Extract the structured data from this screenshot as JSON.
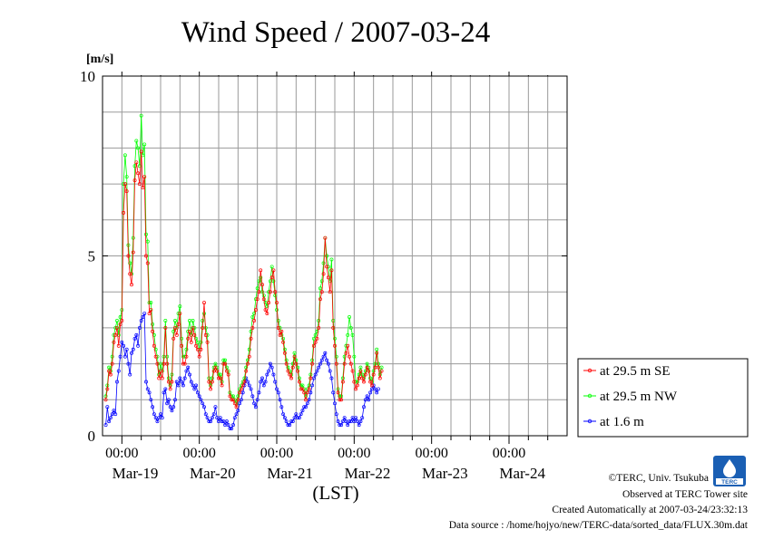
{
  "chart_data": {
    "type": "line",
    "title": "Wind Speed / 2007-03-24",
    "ylabel": "[m/s]",
    "xlabel": "(LST)",
    "ylim": [
      0,
      10
    ],
    "yticks": [
      "0",
      "5",
      "10"
    ],
    "xlim": [
      "2007-03-18T18:00",
      "2007-03-24T18:00"
    ],
    "x_tick_labels": [
      "00:00",
      "00:00",
      "00:00",
      "00:00",
      "00:00"
    ],
    "x_date_labels": [
      "Mar-19",
      "Mar-20",
      "Mar-21",
      "Mar-22",
      "Mar-23",
      "Mar-24"
    ],
    "grid": true,
    "legend_position": "right",
    "series": [
      {
        "name": "at 29.5 m SE",
        "color": "#ff0000",
        "values": [
          1.0,
          1.3,
          1.8,
          1.7,
          2.0,
          2.6,
          2.8,
          3.0,
          2.5,
          3.1,
          3.2,
          6.2,
          7.0,
          6.8,
          5.0,
          4.5,
          4.2,
          5.1,
          7.1,
          7.6,
          7.3,
          7.0,
          7.9,
          6.9,
          7.2,
          5.0,
          4.8,
          3.4,
          3.5,
          2.9,
          2.5,
          2.2,
          2.0,
          1.6,
          1.8,
          1.6,
          2.0,
          3.0,
          2.0,
          1.5,
          1.3,
          1.5,
          2.7,
          3.0,
          2.8,
          3.1,
          3.4,
          2.5,
          2.0,
          2.0,
          2.2,
          2.7,
          2.9,
          2.6,
          3.0,
          2.8,
          2.5,
          2.4,
          2.2,
          2.4,
          3.0,
          3.7,
          2.8,
          2.6,
          1.5,
          1.3,
          1.5,
          1.8,
          1.9,
          1.8,
          1.6,
          1.6,
          1.4,
          2.0,
          2.0,
          1.8,
          1.7,
          1.1,
          1.0,
          1.0,
          0.9,
          0.8,
          1.0,
          1.2,
          1.3,
          1.4,
          1.5,
          1.8,
          2.0,
          2.2,
          2.7,
          3.0,
          3.2,
          3.5,
          3.8,
          4.0,
          4.6,
          4.2,
          3.8,
          3.5,
          3.4,
          3.7,
          4.0,
          4.4,
          4.6,
          4.0,
          3.7,
          3.0,
          2.8,
          2.9,
          2.6,
          2.3,
          2.0,
          1.8,
          1.7,
          1.6,
          1.9,
          2.2,
          2.0,
          1.8,
          1.5,
          1.3,
          1.3,
          1.2,
          1.0,
          1.2,
          1.3,
          1.6,
          2.0,
          2.5,
          2.6,
          2.7,
          3.0,
          3.8,
          4.0,
          4.5,
          5.5,
          4.7,
          4.4,
          4.0,
          4.6,
          3.0,
          2.5,
          2.0,
          1.2,
          1.0,
          1.0,
          1.5,
          2.0,
          2.3,
          2.5,
          2.2,
          2.0,
          1.8,
          1.5,
          1.3,
          1.4,
          1.6,
          1.8,
          1.6,
          1.5,
          1.7,
          1.9,
          1.8,
          1.5,
          1.4,
          1.7,
          1.9,
          2.3,
          1.9,
          1.6,
          1.8
        ]
      },
      {
        "name": "at 29.5 m NW",
        "color": "#00ff00",
        "values": [
          1.1,
          1.4,
          1.9,
          1.8,
          2.2,
          2.8,
          3.0,
          3.2,
          2.8,
          3.3,
          3.5,
          7.0,
          7.8,
          7.2,
          5.3,
          4.8,
          4.5,
          5.5,
          7.5,
          8.2,
          8.0,
          7.5,
          8.9,
          7.8,
          8.1,
          5.6,
          5.4,
          3.7,
          3.7,
          3.1,
          2.8,
          2.4,
          2.2,
          1.7,
          2.0,
          1.8,
          2.2,
          3.2,
          2.2,
          1.6,
          1.4,
          1.7,
          2.9,
          3.2,
          3.0,
          3.4,
          3.6,
          2.7,
          2.2,
          2.2,
          2.4,
          2.9,
          3.2,
          2.8,
          3.2,
          3.0,
          2.7,
          2.6,
          2.4,
          2.6,
          3.2,
          3.4,
          3.0,
          2.8,
          1.6,
          1.4,
          1.6,
          1.9,
          2.0,
          1.9,
          1.7,
          1.7,
          1.5,
          2.1,
          2.1,
          1.9,
          1.8,
          1.2,
          1.1,
          1.1,
          1.0,
          0.9,
          1.1,
          1.3,
          1.4,
          1.5,
          1.6,
          1.9,
          2.1,
          2.4,
          2.9,
          3.3,
          3.4,
          3.8,
          4.1,
          4.3,
          4.4,
          4.0,
          3.9,
          3.7,
          3.6,
          4.0,
          4.3,
          4.7,
          4.3,
          3.9,
          3.5,
          3.2,
          3.0,
          2.8,
          2.7,
          2.4,
          2.1,
          1.9,
          1.8,
          1.7,
          2.0,
          2.3,
          2.1,
          1.9,
          1.6,
          1.4,
          1.4,
          1.3,
          1.1,
          1.3,
          1.4,
          1.7,
          2.1,
          2.7,
          2.8,
          2.9,
          3.2,
          4.1,
          4.3,
          4.8,
          5.5,
          5.0,
          4.7,
          4.3,
          4.9,
          3.2,
          2.7,
          2.2,
          1.3,
          1.1,
          1.1,
          1.6,
          2.2,
          2.5,
          2.8,
          3.3,
          3.0,
          2.8,
          2.2,
          1.5,
          1.5,
          1.7,
          1.9,
          1.7,
          1.6,
          1.8,
          2.0,
          1.9,
          1.6,
          1.5,
          1.8,
          2.0,
          2.4,
          2.0,
          1.7,
          1.9
        ]
      },
      {
        "name": "at 1.6 m",
        "color": "#0000ff",
        "values": [
          0.3,
          0.8,
          0.4,
          0.5,
          0.6,
          0.7,
          0.6,
          1.5,
          1.8,
          2.2,
          2.6,
          2.5,
          2.2,
          2.4,
          2.0,
          1.7,
          2.3,
          2.4,
          2.7,
          2.8,
          2.5,
          3.0,
          3.2,
          3.3,
          3.4,
          1.5,
          1.3,
          1.2,
          1.0,
          0.8,
          0.6,
          0.5,
          0.4,
          0.5,
          0.6,
          0.5,
          1.2,
          1.3,
          0.9,
          1.0,
          0.8,
          0.7,
          0.8,
          1.0,
          1.5,
          1.4,
          1.6,
          1.5,
          1.4,
          1.6,
          1.8,
          1.9,
          1.7,
          1.5,
          1.4,
          1.3,
          1.4,
          1.2,
          1.1,
          1.0,
          0.9,
          0.8,
          0.6,
          0.5,
          0.4,
          0.4,
          0.5,
          0.6,
          0.8,
          0.5,
          0.4,
          0.5,
          0.4,
          0.4,
          0.3,
          0.4,
          0.3,
          0.2,
          0.2,
          0.3,
          0.5,
          0.6,
          0.7,
          0.9,
          1.0,
          1.2,
          1.4,
          1.6,
          1.5,
          1.4,
          1.3,
          1.1,
          0.9,
          0.8,
          1.0,
          1.2,
          1.5,
          1.6,
          1.4,
          1.5,
          1.7,
          1.8,
          2.0,
          1.9,
          1.7,
          1.5,
          1.3,
          1.2,
          1.0,
          0.8,
          0.6,
          0.5,
          0.4,
          0.3,
          0.3,
          0.4,
          0.4,
          0.5,
          0.6,
          0.5,
          0.5,
          0.6,
          0.7,
          0.8,
          0.8,
          0.9,
          1.0,
          1.2,
          1.4,
          1.6,
          1.7,
          1.8,
          1.9,
          2.0,
          2.1,
          2.2,
          2.3,
          2.1,
          2.0,
          1.8,
          1.6,
          1.2,
          0.9,
          0.6,
          0.4,
          0.3,
          0.3,
          0.4,
          0.5,
          0.4,
          0.3,
          0.4,
          0.4,
          0.5,
          0.4,
          0.5,
          0.4,
          0.3,
          0.4,
          0.5,
          0.8,
          1.0,
          1.1,
          1.0,
          1.2,
          1.3,
          1.4,
          1.3,
          1.2,
          1.3
        ]
      }
    ]
  },
  "legend": {
    "items": [
      {
        "label": "at 29.5 m SE",
        "color": "#ff0000"
      },
      {
        "label": "at 29.5 m NW",
        "color": "#00ff00"
      },
      {
        "label": "at 1.6 m",
        "color": "#0000ff"
      }
    ]
  },
  "logo": {
    "icon": "terc-logo-icon",
    "text": "TERC",
    "color": "#1a5fb4"
  },
  "footer": {
    "copyright": "©TERC, Univ. Tsukuba",
    "observed": "Observed at TERC Tower site",
    "created": "Created Automatically at 2007-03-24/23:32:13",
    "source": "Data source : /home/hojyo/new/TERC-data/sorted_data/FLUX.30m.dat"
  }
}
